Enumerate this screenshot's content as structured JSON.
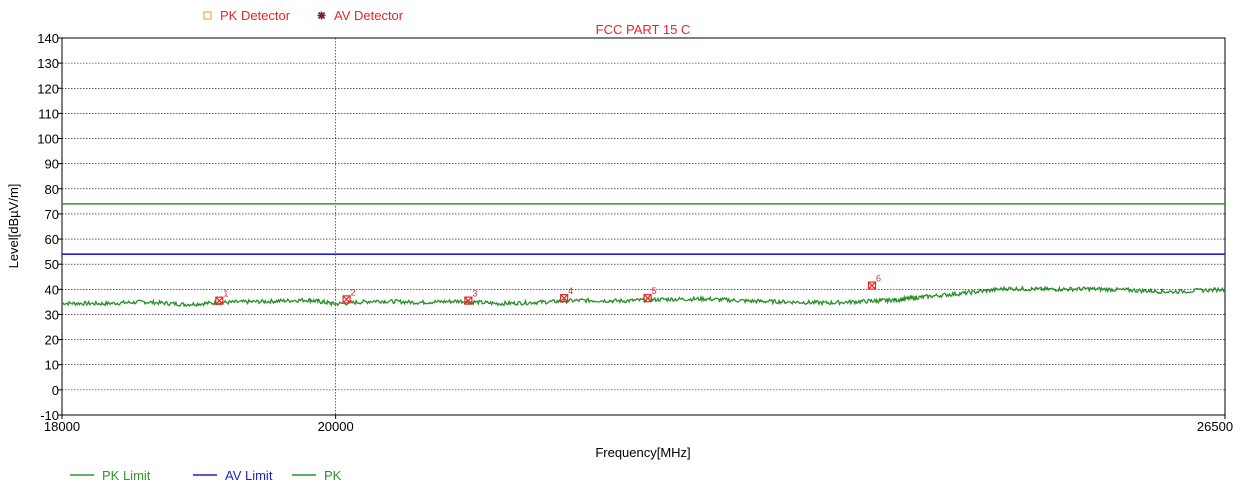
{
  "chart_data": {
    "type": "line",
    "title": "FCC PART 15 C",
    "xlabel": "Frequency[MHz]",
    "ylabel": "Level[dBµV/m]",
    "xlim": [
      18000,
      26500
    ],
    "ylim": [
      -10,
      140
    ],
    "x_ticks": [
      18000,
      20000,
      26500
    ],
    "y_ticks": [
      -10,
      0,
      10,
      20,
      30,
      40,
      50,
      60,
      70,
      80,
      90,
      100,
      110,
      120,
      130,
      140
    ],
    "grid": true,
    "detector_legend": [
      {
        "name": "PK Detector",
        "symbol": "square",
        "color": "#f4a462"
      },
      {
        "name": "AV Detector",
        "symbol": "asterisk",
        "color": "#7a1a3a"
      }
    ],
    "series": [
      {
        "name": "PK Limit",
        "color": "#2e9a2e",
        "x": [
          18000,
          26500
        ],
        "y": [
          74,
          74
        ]
      },
      {
        "name": "AV Limit",
        "color": "#1f1fd0",
        "x": [
          18000,
          26500
        ],
        "y": [
          54,
          54
        ]
      },
      {
        "name": "PK",
        "color": "#2a8f2a",
        "x": [
          18000,
          18300,
          18600,
          18900,
          19200,
          19500,
          19800,
          20000,
          20300,
          20600,
          20900,
          21200,
          21500,
          21800,
          22100,
          22400,
          22700,
          23000,
          23300,
          23600,
          23900,
          24100,
          24300,
          24600,
          24900,
          25200,
          25500,
          25800,
          26100,
          26500
        ],
        "y": [
          34.5,
          34.3,
          35.0,
          34.0,
          34.8,
          35.2,
          35.8,
          34.2,
          35.4,
          34.8,
          35.3,
          34.3,
          34.9,
          35.6,
          35.4,
          36.0,
          36.2,
          35.4,
          35.0,
          34.6,
          35.3,
          35.8,
          37.0,
          38.5,
          40.3,
          40.0,
          40.2,
          39.7,
          39.0,
          40.0
        ]
      }
    ],
    "markers": [
      {
        "label": "1",
        "x": 19150,
        "y": 35.5
      },
      {
        "label": "2",
        "x": 20080,
        "y": 36.0
      },
      {
        "label": "3",
        "x": 20970,
        "y": 35.5
      },
      {
        "label": "4",
        "x": 21670,
        "y": 36.5
      },
      {
        "label": "5",
        "x": 22280,
        "y": 36.5
      },
      {
        "label": "6",
        "x": 23920,
        "y": 41.5
      }
    ]
  }
}
